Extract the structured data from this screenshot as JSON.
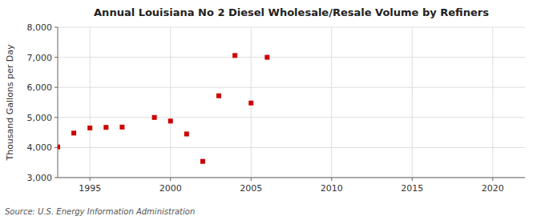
{
  "chart_data": {
    "type": "scatter",
    "title": "Annual Louisiana No 2 Diesel Wholesale/Resale Volume by Refiners",
    "ylabel": "Thousand Gallons per Day",
    "source": "Source: U.S. Energy Information Administration",
    "x": [
      1993,
      1994,
      1995,
      1996,
      1997,
      1999,
      2000,
      2001,
      2002,
      2003,
      2004,
      2005,
      2006
    ],
    "values": [
      4020,
      4480,
      4650,
      4670,
      4680,
      5000,
      4880,
      4450,
      3540,
      5720,
      7060,
      5480,
      7000
    ],
    "color": "#cc0000",
    "marker": "square",
    "xlim": [
      1993,
      2022
    ],
    "ylim": [
      3000,
      8000
    ],
    "xticks": [
      1995,
      2000,
      2005,
      2010,
      2015,
      2020
    ],
    "yticks": [
      {
        "value": 3000,
        "label": "3,000"
      },
      {
        "value": 4000,
        "label": "4,000"
      },
      {
        "value": 5000,
        "label": "5,000"
      },
      {
        "value": 6000,
        "label": "6,000"
      },
      {
        "value": 7000,
        "label": "7,000"
      },
      {
        "value": 8000,
        "label": "8,000"
      }
    ],
    "grid": true
  }
}
